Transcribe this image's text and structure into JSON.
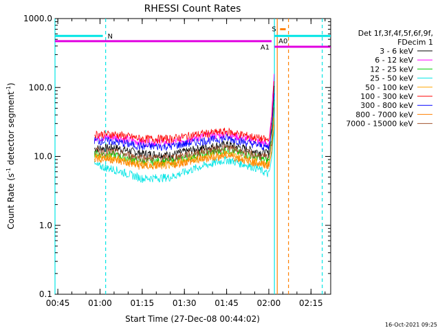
{
  "chart_data": {
    "type": "line",
    "title": "RHESSI Count Rates",
    "xlabel": "Start Time (27-Dec-08 00:44:02)",
    "ylabel_parts": [
      "Count Rate (s",
      "-1",
      " detector segment",
      "-1",
      ")"
    ],
    "yscale": "log",
    "ylim": [
      0.1,
      1000.0
    ],
    "xlim": [
      "00:44:00",
      "02:22:00"
    ],
    "x_ticks": [
      "00:45",
      "01:00",
      "01:15",
      "01:30",
      "01:45",
      "02:00",
      "02:15"
    ],
    "y_ticks": [
      "0.1",
      "1.0",
      "10.0",
      "100.0",
      "1000.0"
    ],
    "legend_position": "right",
    "legend_header": [
      "Det 1f,3f,4f,5f,6f,9f,",
      "FDecim 1"
    ],
    "series": [
      {
        "name": "3 - 6 keV",
        "color": "#000000",
        "x": [
          "00:58",
          "01:05",
          "01:15",
          "01:25",
          "01:35",
          "01:45",
          "01:55",
          "02:00",
          "02:01",
          "02:02"
        ],
        "y": [
          13,
          13.5,
          11,
          10.5,
          13,
          15,
          12,
          11,
          25,
          120
        ]
      },
      {
        "name": "6 - 12 keV",
        "color": "#ff00ff",
        "x": [
          "00:58",
          "01:05",
          "01:15",
          "01:25",
          "01:35",
          "01:45",
          "01:55",
          "02:00",
          "02:01",
          "02:02"
        ],
        "y": [
          19,
          19,
          16,
          16,
          19,
          21,
          17,
          15,
          40,
          200
        ]
      },
      {
        "name": "12 - 25 keV",
        "color": "#00cc00",
        "x": [
          "00:58",
          "01:05",
          "01:15",
          "01:25",
          "01:35",
          "01:45",
          "01:55",
          "02:00",
          "02:01",
          "02:02"
        ],
        "y": [
          11,
          10.5,
          8.5,
          8.5,
          10.5,
          12.5,
          10,
          8.5,
          18,
          80
        ]
      },
      {
        "name": "25 - 50 keV",
        "color": "#00e5e5",
        "x": [
          "00:58",
          "01:05",
          "01:15",
          "01:25",
          "01:35",
          "01:45",
          "01:55",
          "02:00",
          "02:01",
          "02:02"
        ],
        "y": [
          7.5,
          6.5,
          4.8,
          5,
          7,
          9,
          7,
          5.5,
          9,
          30
        ]
      },
      {
        "name": "50 - 100 keV",
        "color": "#ffa500",
        "x": [
          "00:58",
          "01:05",
          "01:15",
          "01:25",
          "01:35",
          "01:45",
          "01:55",
          "02:00",
          "02:01",
          "02:02"
        ],
        "y": [
          10,
          9.5,
          7.5,
          7.8,
          9.5,
          11,
          8.5,
          7.5,
          12,
          40
        ]
      },
      {
        "name": "100 - 300 keV",
        "color": "#ff0000",
        "x": [
          "00:58",
          "01:05",
          "01:15",
          "01:25",
          "01:35",
          "01:45",
          "01:55",
          "02:00",
          "02:01",
          "02:02"
        ],
        "y": [
          21,
          21,
          18,
          18,
          21,
          23,
          19,
          17,
          30,
          150
        ]
      },
      {
        "name": "300 - 800 keV",
        "color": "#0000ff",
        "x": [
          "00:58",
          "01:05",
          "01:15",
          "01:25",
          "01:35",
          "01:45",
          "01:55",
          "02:00",
          "02:01",
          "02:02"
        ],
        "y": [
          17,
          16.5,
          14,
          14,
          16.5,
          18.5,
          15,
          13.5,
          25,
          100
        ]
      },
      {
        "name": "800 - 7000 keV",
        "color": "#ff8000",
        "x": [
          "00:58",
          "01:05",
          "01:15",
          "01:25",
          "01:35",
          "01:45",
          "01:55",
          "02:00",
          "02:01",
          "02:02"
        ],
        "y": [
          9.5,
          9,
          7.2,
          7.5,
          9,
          10.5,
          8.2,
          7.3,
          11,
          35
        ]
      },
      {
        "name": "7000 - 15000 keV",
        "color": "#a0522d",
        "x": [
          "00:58",
          "01:05",
          "01:15",
          "01:25",
          "01:35",
          "01:45",
          "01:55",
          "02:00",
          "02:01",
          "02:02"
        ],
        "y": [
          12,
          11.5,
          9.5,
          9.5,
          11.5,
          13.5,
          10.5,
          9.5,
          15,
          60
        ]
      }
    ],
    "annotations": [
      {
        "label": "N",
        "color": "#00e5e5",
        "x": [
          "00:44",
          "01:01"
        ],
        "y": 560
      },
      {
        "label": "A1",
        "color": "#e000e0",
        "x": [
          "00:44",
          "02:01"
        ],
        "y": 470
      },
      {
        "label": "S",
        "color": "#ff8000",
        "x": [
          "02:04",
          "02:06"
        ],
        "y": 700
      },
      {
        "label": "A0",
        "color": "#e000e0",
        "x": [
          "02:02",
          "02:22"
        ],
        "y": 390
      },
      {
        "label": "",
        "color": "#00e5e5",
        "x": [
          "02:02",
          "02:22"
        ],
        "y": 560
      }
    ],
    "vertical_markers": [
      {
        "x": "00:44",
        "color": "#00e5e5",
        "style": "solid"
      },
      {
        "x": "01:02",
        "color": "#00e5e5",
        "style": "dashed"
      },
      {
        "x": "02:02",
        "color": "#00e5e5",
        "style": "solid"
      },
      {
        "x": "02:03",
        "color": "#ff8000",
        "style": "solid"
      },
      {
        "x": "02:07",
        "color": "#ff8000",
        "style": "dashed"
      },
      {
        "x": "02:19",
        "color": "#00e5e5",
        "style": "dashed"
      }
    ]
  },
  "footer": {
    "timestamp": "16-Oct-2021 09:25"
  }
}
